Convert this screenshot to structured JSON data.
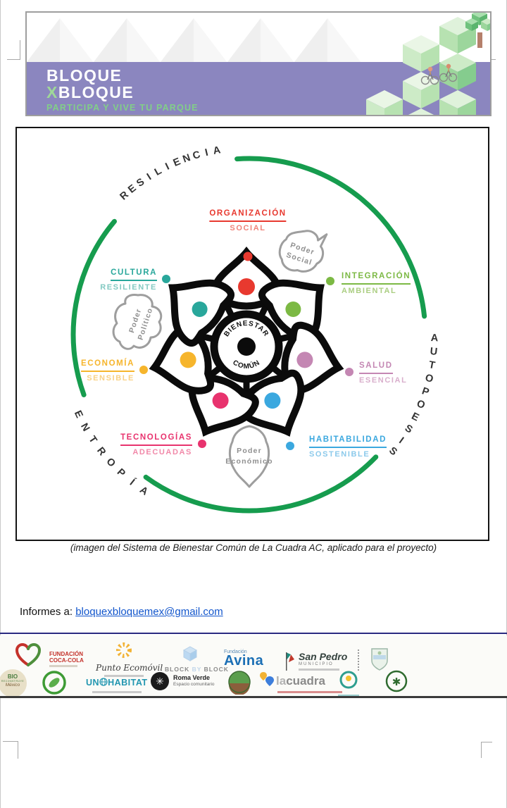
{
  "banner": {
    "line1": "BLOQUE",
    "line2_x": "X",
    "line2": "BLOQUE",
    "tagline": "PARTICIPA Y VIVE TU PARQUE",
    "purple": "#8B86BF",
    "tagline_green": "#82CE88",
    "x_green": "#9FD898"
  },
  "diagram": {
    "arc_color": "#169C4E",
    "ring_words": {
      "top_left": "RESILIENCIA",
      "right": "AUTOPOESIS",
      "bottom_left": "ENTROPÍA"
    },
    "center": {
      "line1": "BIENESTAR",
      "line2": "COMÚN"
    },
    "labels": {
      "organizacion": {
        "w1": "ORGANIZACIÓN",
        "w2": "SOCIAL",
        "color": "#E8392F"
      },
      "integracion": {
        "w1": "INTEGRACIÓN",
        "w2": "AMBIENTAL",
        "color": "#7CB944"
      },
      "salud": {
        "w1": "SALUD",
        "w2": "ESENCIAL",
        "color": "#C487B3"
      },
      "habitabilidad": {
        "w1": "HABITABILIDAD",
        "w2": "SOSTENIBLE",
        "color": "#3BA8DF"
      },
      "tecnologias": {
        "w1": "TECNOLOGÍAS",
        "w2": "ADECUADAS",
        "color": "#E8336E"
      },
      "economia": {
        "w1": "ECONOMÍA",
        "w2": "SENSIBLE",
        "color": "#F6B52C"
      },
      "cultura": {
        "w1": "CULTURA",
        "w2": "RESILIENTE",
        "color": "#29A79B"
      }
    },
    "clouds": {
      "social": {
        "l1": "Poder",
        "l2": "Social"
      },
      "politico": {
        "l1": "Poder",
        "l2": "Político"
      },
      "economico": {
        "l1": "Poder",
        "l2": "Económico"
      }
    }
  },
  "caption": "(imagen del Sistema de Bienestar Común de La Cuadra AC, aplicado para el proyecto)",
  "contact": {
    "label": "Informes a: ",
    "email": "bloquexbloquemex@gmail.com"
  },
  "footer": {
    "coca_cola": {
      "t1": "FUNDACIÓN",
      "t2": "COCA-COLA"
    },
    "ecomovil": {
      "t": "Punto Ecomóvil"
    },
    "block": {
      "t1": "BLOCK",
      "t2": "BY",
      "t3": "BLOCK"
    },
    "avina": {
      "t1": "Fundación",
      "t2": "Avina"
    },
    "san_pedro": {
      "t1": "San Pedro",
      "t2": "MUNICIPIO"
    },
    "bio": {
      "t1": "BIO",
      "t2": "RECONSTRUYE",
      "t3": "México"
    },
    "unhabitat": {
      "t1": "UN",
      "t2": "HABITAT"
    },
    "roma_verde": {
      "t1": "Roma Verde",
      "t2": "Espacio comunitario"
    },
    "lacuadra": {
      "t1": "la",
      "t2": "cuadra"
    }
  }
}
